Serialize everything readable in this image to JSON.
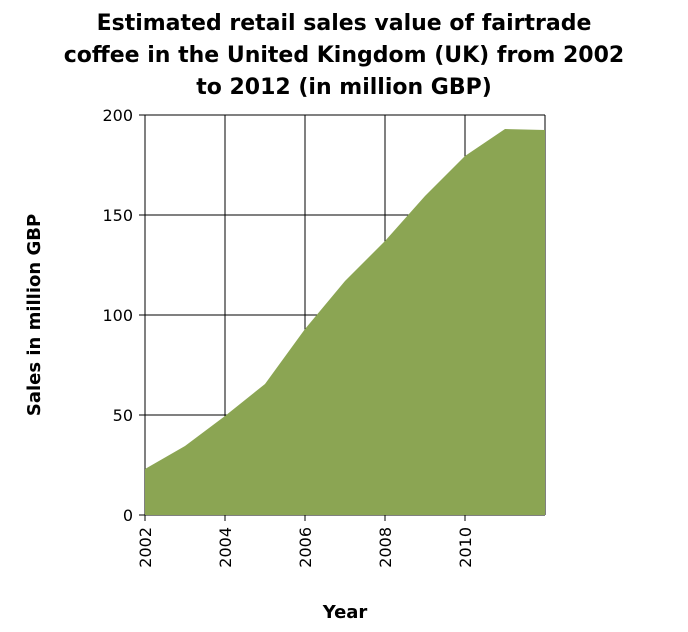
{
  "chart_data": {
    "type": "area",
    "title_lines": [
      "Estimated retail sales value of fairtrade",
      "coffee in the United Kingdom (UK) from 2002",
      "to 2012 (in million GBP)"
    ],
    "xlabel": "Year",
    "ylabel": "Sales in million GBP",
    "x": [
      2002,
      2003,
      2004,
      2005,
      2006,
      2007,
      2008,
      2009,
      2010,
      2011,
      2012
    ],
    "values": [
      23,
      34.5,
      49.5,
      65.5,
      93,
      117,
      137,
      159.5,
      179.5,
      193,
      192.5
    ],
    "xlim": [
      2002,
      2012
    ],
    "ylim": [
      0,
      200
    ],
    "xticks": [
      "2002",
      "2004",
      "2006",
      "2008",
      "2010"
    ],
    "xtick_values": [
      2002,
      2004,
      2006,
      2008,
      2010
    ],
    "yticks": [
      "0",
      "50",
      "100",
      "150",
      "200"
    ],
    "ytick_values": [
      0,
      50,
      100,
      150,
      200
    ],
    "grid": true,
    "fill_color": "#8ba553"
  }
}
